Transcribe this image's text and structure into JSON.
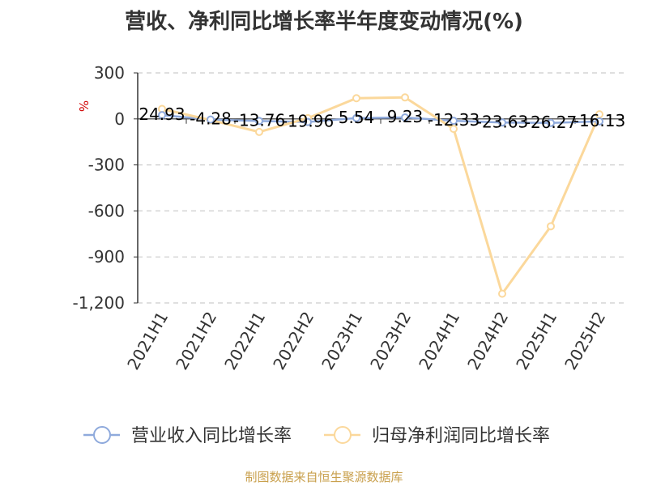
{
  "chart_data": {
    "type": "line",
    "title": "营收、净利同比增长率半年度变动情况(%)",
    "ylabel": "%",
    "xlabel": "",
    "categories": [
      "2021H1",
      "2021H2",
      "2022H1",
      "2022H2",
      "2023H1",
      "2023H2",
      "2024H1",
      "2024H2",
      "2025H1",
      "2025H2"
    ],
    "ylim": [
      -1200,
      300
    ],
    "yticks": [
      300,
      0,
      -300,
      -600,
      -900,
      -1200
    ],
    "ytick_labels": [
      "300",
      "0",
      "-300",
      "-600",
      "-900",
      "-1,200"
    ],
    "grid": true,
    "legend_position": "bottom",
    "series": [
      {
        "name": "营业收入同比增长率",
        "color": "#8faadc",
        "values": [
          24.93,
          -4.28,
          -13.76,
          -19.96,
          5.54,
          9.23,
          -12.33,
          -23.63,
          -26.27,
          -16.13
        ],
        "labels": [
          "24.93",
          "-4.28",
          "-13.76",
          "-19.96",
          "5.54",
          "9.23",
          "-12.33",
          "-23.63",
          "-26.27",
          "-16.13"
        ]
      },
      {
        "name": "归母净利润同比增长率",
        "color": "#fbd89b",
        "values": [
          65,
          -8,
          -85,
          5,
          135,
          140,
          -65,
          -1140,
          -700,
          30
        ]
      }
    ]
  },
  "source": "制图数据来自恒生聚源数据库"
}
